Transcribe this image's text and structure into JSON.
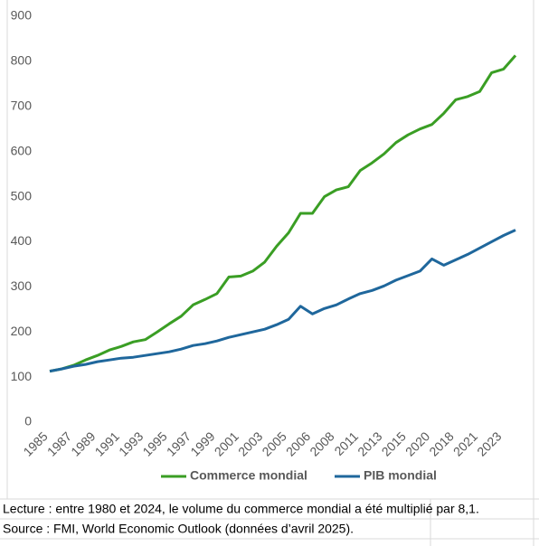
{
  "chart_data": {
    "type": "line",
    "categories": [
      "1985",
      null,
      "1987",
      null,
      "1989",
      null,
      "1991",
      null,
      "1993",
      null,
      "1995",
      null,
      "1997",
      null,
      "1999",
      null,
      "2001",
      null,
      "2003",
      null,
      "2005",
      null,
      "2006",
      null,
      "2008",
      null,
      "2011",
      null,
      "2013",
      null,
      "2015",
      null,
      "2020",
      null,
      "2018",
      null,
      "2021",
      null,
      "2023",
      null
    ],
    "series": [
      {
        "name": "Commerce mondial",
        "color": "#3a9e24",
        "values": [
          113,
          118,
          126,
          138,
          148,
          160,
          168,
          178,
          183,
          200,
          218,
          235,
          260,
          272,
          285,
          322,
          324,
          335,
          355,
          390,
          420,
          463,
          463,
          500,
          515,
          522,
          558,
          575,
          595,
          620,
          637,
          650,
          660,
          685,
          715,
          722,
          733,
          775,
          783,
          813
        ]
      },
      {
        "name": "PIB mondial",
        "color": "#1f679c",
        "values": [
          113,
          118,
          124,
          128,
          134,
          138,
          142,
          144,
          148,
          152,
          156,
          162,
          170,
          174,
          180,
          188,
          194,
          200,
          206,
          216,
          228,
          257,
          240,
          252,
          260,
          273,
          285,
          292,
          302,
          315,
          325,
          335,
          362,
          348,
          360,
          372,
          386,
          400,
          414,
          426
        ]
      }
    ],
    "ylim": [
      0,
      900
    ],
    "yticks": [
      0,
      100,
      200,
      300,
      400,
      500,
      600,
      700,
      800,
      900
    ],
    "grid": false,
    "legend": "bottom"
  },
  "notes": [
    "Lecture : entre 1980 et 2024, le volume du commerce mondial a été multiplié par 8,1.",
    "Source : FMI, World Economic Outlook (données d’avril 2025)."
  ]
}
